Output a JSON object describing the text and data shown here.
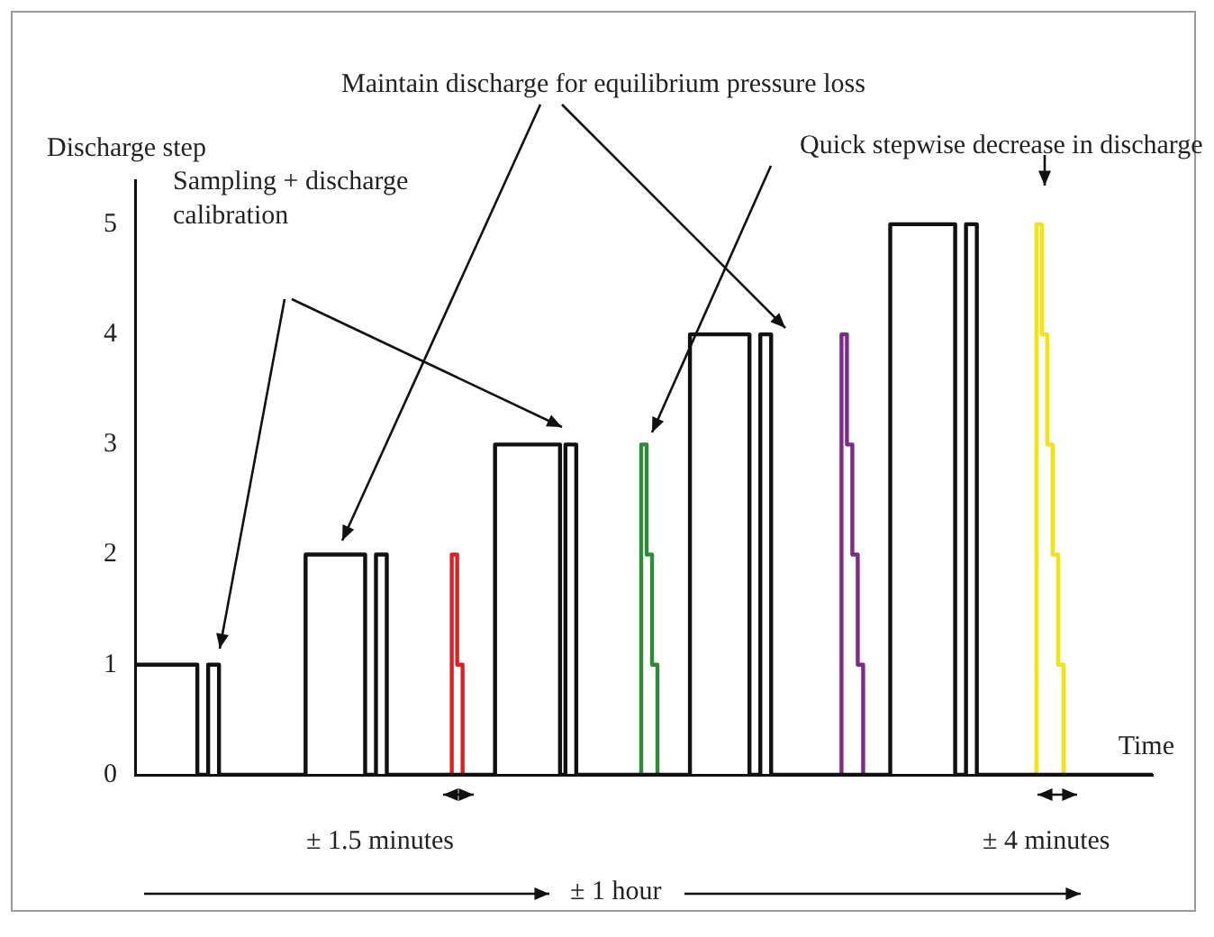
{
  "chart_data": {
    "type": "step",
    "xlabel": "Time",
    "ylabel": "Discharge step",
    "tick_labels": "y",
    "marker": "none",
    "ylim": [
      0,
      5.4
    ],
    "yticks": [
      0,
      1,
      2,
      3,
      4,
      5
    ],
    "annotations": [
      "Maintain discharge for equilibrium pressure loss",
      "Sampling + discharge calibration",
      "Quick stepwise decrease in discharge",
      "± 1.5 minutes",
      "± 4 minutes",
      "± 1 hour"
    ],
    "categories": [
      null,
      null,
      null,
      null,
      null,
      null,
      null,
      null,
      null,
      null,
      null,
      null,
      null,
      null,
      null,
      null,
      null,
      null,
      null,
      null,
      null,
      null,
      null,
      null,
      null,
      null,
      null,
      null,
      null,
      null,
      null,
      null,
      null,
      null,
      null,
      null,
      null,
      null,
      null,
      null,
      null,
      null,
      null,
      null,
      null,
      null,
      null,
      null,
      null,
      null,
      null,
      null,
      null,
      null,
      null,
      null,
      null,
      null,
      null,
      null,
      null,
      null,
      null,
      null,
      null,
      null,
      null,
      null,
      null,
      null,
      null,
      null,
      null,
      null,
      null,
      null,
      null,
      null,
      null,
      null,
      null,
      null,
      null,
      null,
      null,
      null,
      null,
      null,
      null,
      null,
      null,
      null,
      null,
      null,
      null,
      null,
      null,
      null,
      null,
      null,
      null,
      null,
      null,
      null,
      null,
      null,
      null,
      null,
      null,
      null,
      null,
      null,
      null,
      null,
      null,
      null,
      null,
      null,
      null,
      null,
      null,
      null,
      null,
      null,
      null,
      null,
      null,
      null,
      null,
      null,
      null,
      null,
      null,
      null,
      null,
      null,
      null,
      null,
      null,
      null,
      null,
      null,
      null,
      null,
      null,
      null,
      null,
      null,
      null,
      null,
      null,
      null,
      null,
      null,
      null,
      null,
      null,
      null,
      null,
      null,
      null,
      null,
      null,
      null,
      null,
      null,
      null,
      null,
      null,
      null,
      null,
      null,
      null,
      null,
      null,
      null,
      null,
      null,
      null,
      null,
      null,
      null,
      null,
      null,
      null,
      null,
      null,
      null,
      null
    ],
    "series": [
      {
        "color": "#111111",
        "values": [
          1,
          1,
          1,
          1,
          1,
          1,
          1,
          1,
          1,
          1,
          1,
          1,
          0,
          0,
          1,
          1,
          0,
          0,
          0,
          0,
          0,
          0,
          0,
          0,
          0,
          0,
          0,
          0,
          0,
          0,
          0,
          0,
          2,
          2,
          2,
          2,
          2,
          2,
          2,
          2,
          2,
          2,
          2,
          0,
          0,
          2,
          2,
          0,
          0,
          0,
          0,
          0,
          0,
          0,
          0,
          0,
          0,
          0,
          0,
          0,
          0,
          0,
          0,
          0,
          0,
          0,
          0,
          3,
          3,
          3,
          3,
          3,
          3,
          3,
          3,
          3,
          3,
          3,
          3,
          0,
          3,
          3,
          0,
          0,
          0,
          0,
          0,
          0,
          0,
          0,
          0,
          0,
          0,
          0,
          0,
          0,
          0,
          0,
          0,
          0,
          0,
          0,
          0,
          4,
          4,
          4,
          4,
          4,
          4,
          4,
          4,
          4,
          4,
          4,
          0,
          0,
          4,
          4,
          0,
          0,
          0,
          0,
          0,
          0,
          0,
          0,
          0,
          0,
          0,
          0,
          0,
          0,
          0,
          0,
          0,
          0,
          0,
          0,
          0,
          0,
          5,
          5,
          5,
          5,
          5,
          5,
          5,
          5,
          5,
          5,
          5,
          5,
          0,
          0,
          5,
          5,
          0,
          0,
          0,
          0,
          0,
          0,
          0,
          0,
          0,
          0,
          0,
          0,
          0,
          0,
          0,
          0,
          0,
          0,
          0,
          0,
          0,
          0,
          0,
          0,
          0,
          0,
          0,
          0,
          0,
          0,
          0,
          0,
          0
        ]
      },
      {
        "color": "#e02020",
        "values": [
          null,
          null,
          null,
          null,
          null,
          null,
          null,
          null,
          null,
          null,
          null,
          null,
          null,
          null,
          null,
          null,
          null,
          null,
          null,
          null,
          null,
          null,
          null,
          null,
          null,
          null,
          null,
          null,
          null,
          null,
          null,
          null,
          null,
          null,
          null,
          null,
          null,
          null,
          null,
          null,
          null,
          null,
          null,
          null,
          null,
          null,
          null,
          null,
          null,
          null,
          null,
          null,
          null,
          null,
          null,
          null,
          null,
          null,
          0,
          2,
          1,
          0,
          null,
          null,
          null,
          null,
          null,
          null,
          null,
          null,
          null,
          null,
          null,
          null,
          null,
          null,
          null,
          null,
          null,
          null,
          null,
          null,
          null,
          null,
          null,
          null,
          null,
          null,
          null,
          null,
          null,
          null,
          null,
          null,
          null,
          null,
          null,
          null,
          null,
          null,
          null,
          null,
          null,
          null,
          null,
          null,
          null,
          null,
          null,
          null,
          null,
          null,
          null,
          null,
          null,
          null,
          null,
          null,
          null,
          null,
          null,
          null,
          null,
          null,
          null,
          null,
          null,
          null,
          null,
          null,
          null,
          null,
          null,
          null,
          null,
          null,
          null,
          null,
          null,
          null,
          null,
          null,
          null,
          null,
          null,
          null,
          null,
          null,
          null,
          null,
          null,
          null,
          null,
          null,
          null,
          null,
          null,
          null,
          null,
          null,
          null,
          null,
          null,
          null,
          null,
          null,
          null,
          null,
          null,
          null,
          null,
          null,
          null,
          null,
          null,
          null,
          null,
          null,
          null,
          null,
          null,
          null,
          null,
          null,
          null,
          null,
          null,
          null,
          null
        ]
      },
      {
        "color": "#2e8b3a",
        "values": [
          null,
          null,
          null,
          null,
          null,
          null,
          null,
          null,
          null,
          null,
          null,
          null,
          null,
          null,
          null,
          null,
          null,
          null,
          null,
          null,
          null,
          null,
          null,
          null,
          null,
          null,
          null,
          null,
          null,
          null,
          null,
          null,
          null,
          null,
          null,
          null,
          null,
          null,
          null,
          null,
          null,
          null,
          null,
          null,
          null,
          null,
          null,
          null,
          null,
          null,
          null,
          null,
          null,
          null,
          null,
          null,
          null,
          null,
          null,
          null,
          null,
          null,
          null,
          null,
          null,
          null,
          null,
          null,
          null,
          null,
          null,
          null,
          null,
          null,
          null,
          null,
          null,
          null,
          null,
          null,
          null,
          null,
          null,
          null,
          null,
          null,
          null,
          null,
          null,
          null,
          null,
          null,
          null,
          0,
          3,
          2,
          1,
          0,
          null,
          null,
          null,
          null,
          null,
          null,
          null,
          null,
          null,
          null,
          null,
          null,
          null,
          null,
          null,
          null,
          null,
          null,
          null,
          null,
          null,
          null,
          null,
          null,
          null,
          null,
          null,
          null,
          null,
          null,
          null,
          null,
          null,
          null,
          null,
          null,
          null,
          null,
          null,
          null,
          null,
          null,
          null,
          null,
          null,
          null,
          null,
          null,
          null,
          null,
          null,
          null,
          null,
          null,
          null,
          null,
          null,
          null,
          null,
          null,
          null,
          null,
          null,
          null,
          null,
          null,
          null,
          null,
          null,
          null,
          null,
          null,
          null,
          null,
          null,
          null,
          null,
          null,
          null,
          null,
          null,
          null,
          null,
          null,
          null,
          null,
          null,
          null,
          null,
          null,
          null
        ]
      },
      {
        "color": "#7b2d86",
        "values": [
          null,
          null,
          null,
          null,
          null,
          null,
          null,
          null,
          null,
          null,
          null,
          null,
          null,
          null,
          null,
          null,
          null,
          null,
          null,
          null,
          null,
          null,
          null,
          null,
          null,
          null,
          null,
          null,
          null,
          null,
          null,
          null,
          null,
          null,
          null,
          null,
          null,
          null,
          null,
          null,
          null,
          null,
          null,
          null,
          null,
          null,
          null,
          null,
          null,
          null,
          null,
          null,
          null,
          null,
          null,
          null,
          null,
          null,
          null,
          null,
          null,
          null,
          null,
          null,
          null,
          null,
          null,
          null,
          null,
          null,
          null,
          null,
          null,
          null,
          null,
          null,
          null,
          null,
          null,
          null,
          null,
          null,
          null,
          null,
          null,
          null,
          null,
          null,
          null,
          null,
          null,
          null,
          null,
          null,
          null,
          null,
          null,
          null,
          null,
          null,
          null,
          null,
          null,
          null,
          null,
          null,
          null,
          null,
          null,
          null,
          null,
          null,
          null,
          null,
          null,
          null,
          null,
          null,
          null,
          null,
          null,
          null,
          null,
          null,
          null,
          null,
          null,
          null,
          null,
          null,
          0,
          4,
          3,
          2,
          1,
          0,
          null,
          null,
          null,
          null,
          null,
          null,
          null,
          null,
          null,
          null,
          null,
          null,
          null,
          null,
          null,
          null,
          null,
          null,
          null,
          null,
          null,
          null,
          null,
          null,
          null,
          null,
          null,
          null,
          null,
          null,
          null,
          null,
          null,
          null,
          null,
          null,
          null,
          null,
          null,
          null,
          null,
          null,
          null,
          null,
          null,
          null,
          null,
          null,
          null,
          null,
          null,
          null,
          null
        ]
      },
      {
        "color": "#f2e21a",
        "values": [
          null,
          null,
          null,
          null,
          null,
          null,
          null,
          null,
          null,
          null,
          null,
          null,
          null,
          null,
          null,
          null,
          null,
          null,
          null,
          null,
          null,
          null,
          null,
          null,
          null,
          null,
          null,
          null,
          null,
          null,
          null,
          null,
          null,
          null,
          null,
          null,
          null,
          null,
          null,
          null,
          null,
          null,
          null,
          null,
          null,
          null,
          null,
          null,
          null,
          null,
          null,
          null,
          null,
          null,
          null,
          null,
          null,
          null,
          null,
          null,
          null,
          null,
          null,
          null,
          null,
          null,
          null,
          null,
          null,
          null,
          null,
          null,
          null,
          null,
          null,
          null,
          null,
          null,
          null,
          null,
          null,
          null,
          null,
          null,
          null,
          null,
          null,
          null,
          null,
          null,
          null,
          null,
          null,
          null,
          null,
          null,
          null,
          null,
          null,
          null,
          null,
          null,
          null,
          null,
          null,
          null,
          null,
          null,
          null,
          null,
          null,
          null,
          null,
          null,
          null,
          null,
          null,
          null,
          null,
          null,
          null,
          null,
          null,
          null,
          null,
          null,
          null,
          null,
          null,
          null,
          null,
          null,
          null,
          null,
          null,
          null,
          null,
          null,
          null,
          null,
          null,
          null,
          null,
          null,
          null,
          null,
          null,
          null,
          null,
          null,
          null,
          null,
          null,
          null,
          null,
          null,
          null,
          null,
          null,
          null,
          null,
          null,
          null,
          null,
          null,
          null,
          0,
          5,
          4,
          3,
          2,
          1,
          0,
          null,
          null,
          null,
          null,
          null,
          null,
          null,
          null,
          null,
          null,
          null,
          null,
          null,
          null,
          null,
          null
        ]
      }
    ]
  }
}
